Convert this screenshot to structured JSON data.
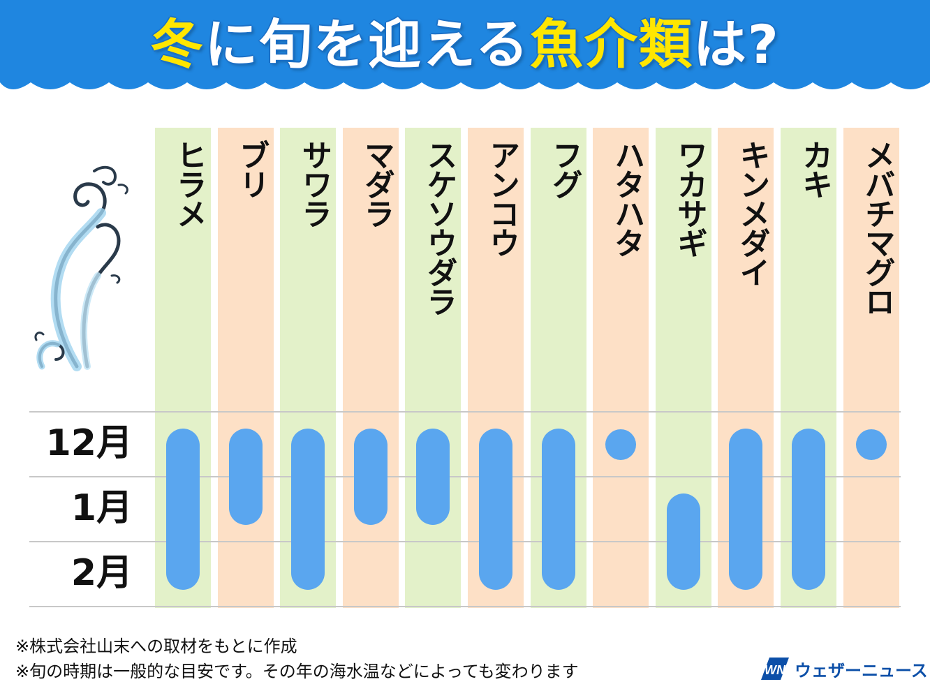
{
  "colors": {
    "header_blue": "#1f86e0",
    "title_highlight": "#ffe600",
    "column_green": "#e3f1c9",
    "column_orange": "#fde0c6",
    "season_blue": "#5aa6ef",
    "brand_blue": "#0c4fa8"
  },
  "title": {
    "part1": "冬",
    "part2": "に旬を迎える",
    "part3": "魚介類",
    "part4": "は?"
  },
  "chart_data": {
    "type": "table",
    "title": "冬に旬を迎える魚介類は?",
    "months": [
      "12月",
      "1月",
      "2月"
    ],
    "items": [
      {
        "name": "ヒラメ",
        "season": [
          "12月",
          "1月",
          "2月"
        ],
        "style": "bar"
      },
      {
        "name": "ブリ",
        "season": [
          "12月",
          "1月"
        ],
        "style": "bar"
      },
      {
        "name": "サワラ",
        "season": [
          "12月",
          "1月",
          "2月"
        ],
        "style": "bar"
      },
      {
        "name": "マダラ",
        "season": [
          "12月",
          "1月"
        ],
        "style": "bar"
      },
      {
        "name": "スケソウダラ",
        "season": [
          "12月",
          "1月"
        ],
        "style": "bar"
      },
      {
        "name": "アンコウ",
        "season": [
          "12月",
          "1月",
          "2月"
        ],
        "style": "bar"
      },
      {
        "name": "フグ",
        "season": [
          "12月",
          "1月",
          "2月"
        ],
        "style": "bar"
      },
      {
        "name": "ハタハタ",
        "season": [
          "12月"
        ],
        "style": "dot"
      },
      {
        "name": "ワカサギ",
        "season": [
          "1月",
          "2月"
        ],
        "style": "bar"
      },
      {
        "name": "キンメダイ",
        "season": [
          "12月",
          "1月",
          "2月"
        ],
        "style": "bar"
      },
      {
        "name": "カキ",
        "season": [
          "12月",
          "1月",
          "2月"
        ],
        "style": "bar"
      },
      {
        "name": "メバチマグロ",
        "season": [
          "12月"
        ],
        "style": "dot"
      }
    ]
  },
  "notes": [
    "※株式会社山末への取材をもとに作成",
    "※旬の時期は一般的な目安です。その年の海水温などによっても変わります"
  ],
  "brand": {
    "logo_text": "WN",
    "name": "ウェザーニュース"
  },
  "icons": {
    "decoration": "wave-swirl-icon",
    "logo": "weathernews-logo-icon"
  }
}
